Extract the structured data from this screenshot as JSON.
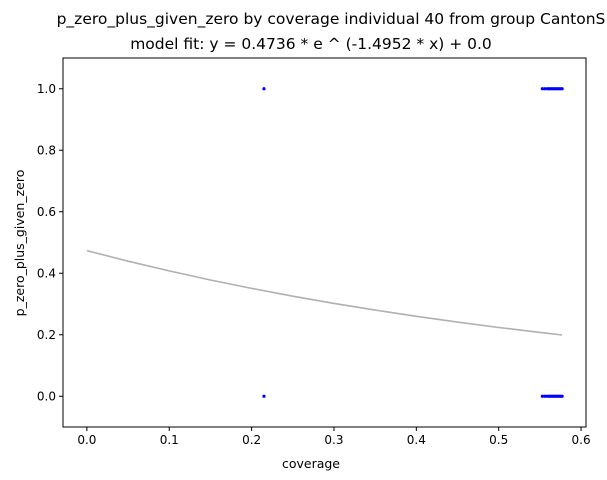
{
  "chart_data": {
    "type": "scatter",
    "title": "p_zero_plus_given_zero by coverage individual 40 from group CantonS",
    "subtitle": "model fit: y = 0.4736 * e ^ (-1.4952 * x) + 0.0",
    "xlabel": "coverage",
    "ylabel": "p_zero_plus_given_zero",
    "xlim": [
      -0.029,
      0.606
    ],
    "ylim": [
      -0.1,
      1.1
    ],
    "x_ticks": [
      0.0,
      0.1,
      0.2,
      0.3,
      0.4,
      0.5,
      0.6
    ],
    "x_tick_labels": [
      "0.0",
      "0.1",
      "0.2",
      "0.3",
      "0.4",
      "0.5",
      "0.6"
    ],
    "y_ticks": [
      0.0,
      0.2,
      0.4,
      0.6,
      0.8,
      1.0
    ],
    "y_tick_labels": [
      "0.0",
      "0.2",
      "0.4",
      "0.6",
      "0.8",
      "1.0"
    ],
    "grid": false,
    "series": [
      {
        "kind": "points",
        "color": "#0000ff",
        "x": [
          0.215,
          0.215,
          0.553,
          0.556,
          0.559,
          0.561,
          0.563,
          0.565,
          0.567,
          0.569,
          0.571,
          0.573,
          0.575,
          0.577,
          0.553,
          0.556,
          0.559,
          0.561,
          0.563,
          0.565,
          0.567,
          0.569,
          0.571,
          0.573,
          0.575,
          0.577
        ],
        "y": [
          1.0,
          0.0,
          1.0,
          1.0,
          1.0,
          1.0,
          1.0,
          1.0,
          1.0,
          1.0,
          1.0,
          1.0,
          1.0,
          1.0,
          0.0,
          0.0,
          0.0,
          0.0,
          0.0,
          0.0,
          0.0,
          0.0,
          0.0,
          0.0,
          0.0,
          0.0
        ]
      },
      {
        "kind": "fit-line",
        "color": "#b0b0b0",
        "x": [
          0.0,
          0.05,
          0.1,
          0.15,
          0.2,
          0.25,
          0.3,
          0.35,
          0.4,
          0.45,
          0.5,
          0.55,
          0.577
        ],
        "y": [
          0.4736,
          0.4393,
          0.4076,
          0.3781,
          0.3508,
          0.3254,
          0.3019,
          0.2801,
          0.2599,
          0.2411,
          0.2236,
          0.2075,
          0.1993
        ]
      }
    ]
  }
}
